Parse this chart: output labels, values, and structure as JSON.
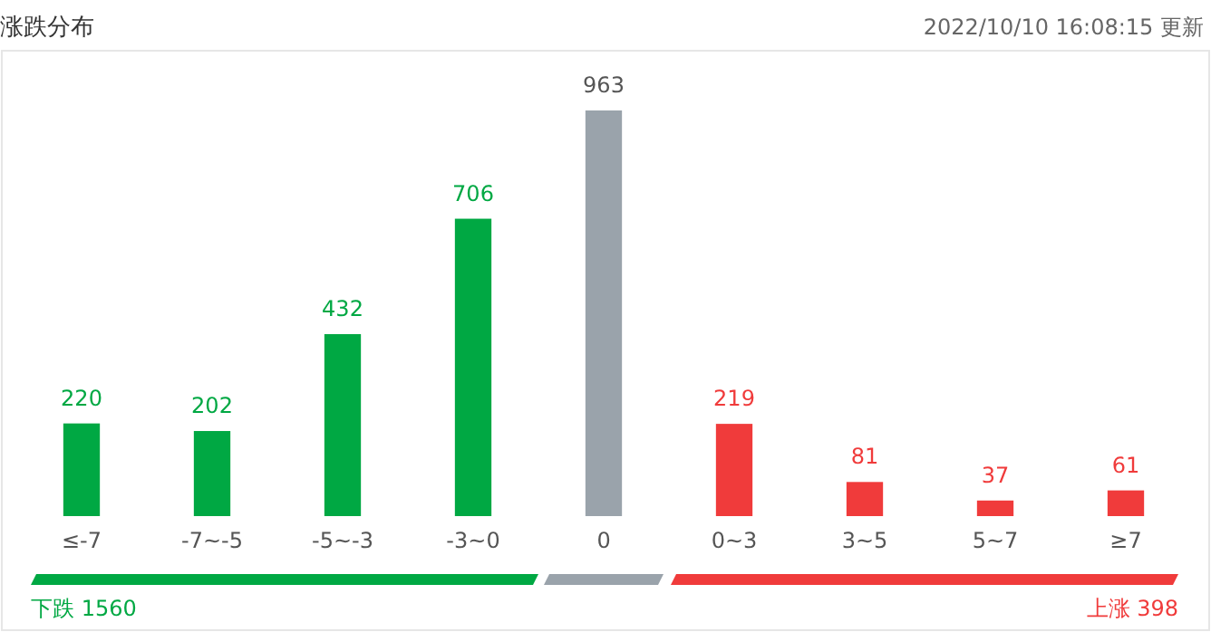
{
  "chart_data": {
    "type": "bar",
    "title": "涨跌分布",
    "subtitle": "2022/10/10 16:08:15 更新",
    "categories": [
      "≤-7",
      "-7~-5",
      "-5~-3",
      "-3~0",
      "0",
      "0~3",
      "3~5",
      "5~7",
      "≥7"
    ],
    "values": [
      220,
      202,
      432,
      706,
      963,
      219,
      81,
      37,
      61
    ],
    "colors": [
      "#00a843",
      "#00a843",
      "#00a843",
      "#00a843",
      "#9aa3ab",
      "#f03b3b",
      "#f03b3b",
      "#f03b3b",
      "#f03b3b"
    ],
    "data_labels": true,
    "annotations": [
      "下跌 1560",
      "上涨 398"
    ]
  }
}
